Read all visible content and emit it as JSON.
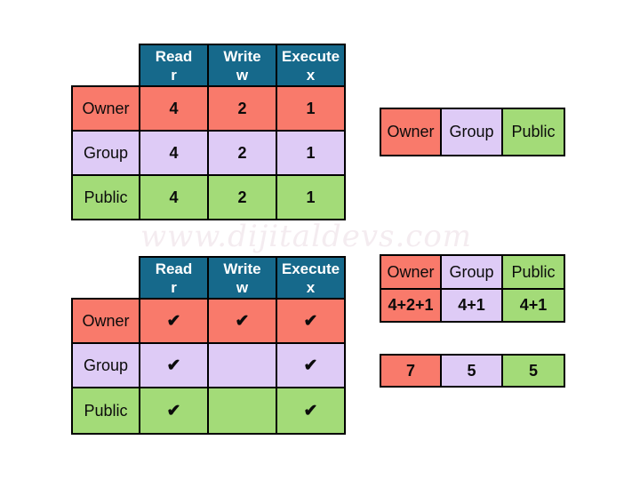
{
  "colors": {
    "header": "#16698B",
    "header_text": "#FFFFFF",
    "owner": "#F97A6B",
    "group": "#DECBF6",
    "public": "#A3DB78",
    "border": "#000000",
    "text": "#0B0B0B",
    "watermark": "#F2E9EDD9"
  },
  "watermark": {
    "text": "www.dijitaldevs.com"
  },
  "permission_value_table": {
    "headers": [
      {
        "title": "Read",
        "symbol": "r"
      },
      {
        "title": "Write",
        "symbol": "w"
      },
      {
        "title": "Execute",
        "symbol": "x"
      }
    ],
    "rows": [
      {
        "label": "Owner",
        "values": [
          "4",
          "2",
          "1"
        ]
      },
      {
        "label": "Group",
        "values": [
          "4",
          "2",
          "1"
        ]
      },
      {
        "label": "Public",
        "values": [
          "4",
          "2",
          "1"
        ]
      }
    ]
  },
  "permission_check_table": {
    "headers": [
      {
        "title": "Read",
        "symbol": "r"
      },
      {
        "title": "Write",
        "symbol": "w"
      },
      {
        "title": "Execute",
        "symbol": "x"
      }
    ],
    "rows": [
      {
        "label": "Owner",
        "values": [
          "✔",
          "✔",
          "✔"
        ]
      },
      {
        "label": "Group",
        "values": [
          "✔",
          "",
          "✔"
        ]
      },
      {
        "label": "Public",
        "values": [
          "✔",
          "",
          "✔"
        ]
      }
    ]
  },
  "entity_row": {
    "cells": [
      "Owner",
      "Group",
      "Public"
    ]
  },
  "sum_table": {
    "headers": [
      "Owner",
      "Group",
      "Public"
    ],
    "values": [
      "4+2+1",
      "4+1",
      "4+1"
    ]
  },
  "result_row": {
    "values": [
      "7",
      "5",
      "5"
    ]
  }
}
